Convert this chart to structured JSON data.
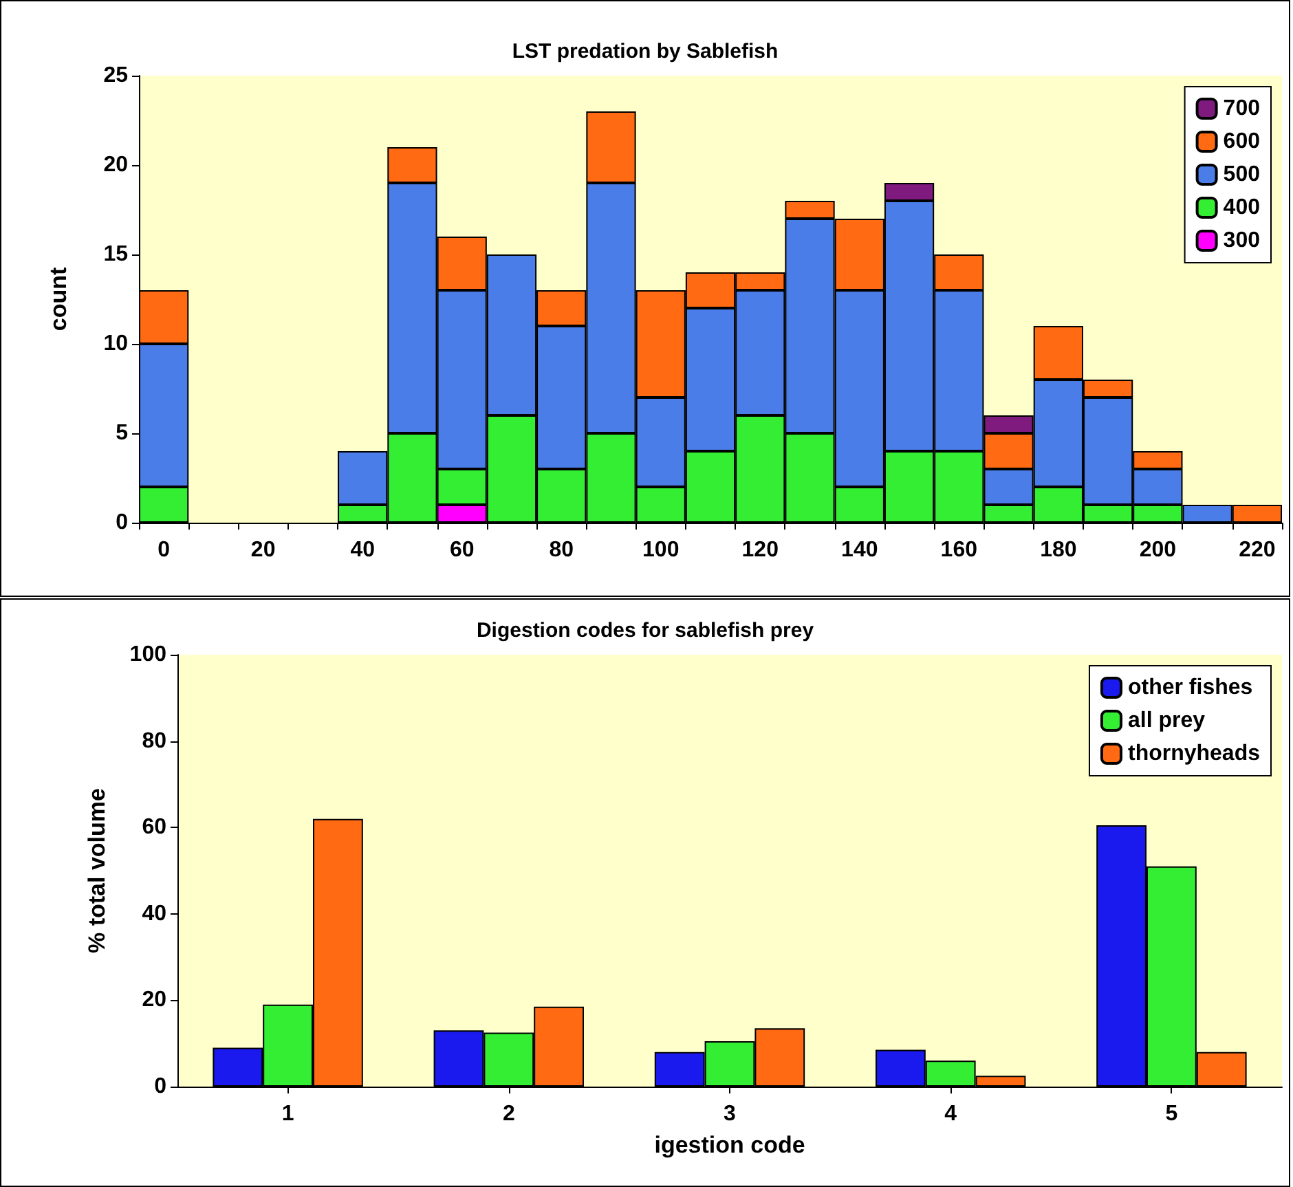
{
  "chart_data": [
    {
      "type": "bar",
      "title": "LST predation by Sablefish",
      "ylabel": "count",
      "stacked": true,
      "legend": "top right",
      "categories": [
        "0",
        null,
        "20",
        null,
        "40",
        null,
        "60",
        null,
        "80",
        null,
        "100",
        null,
        "120",
        null,
        "140",
        null,
        "160",
        null,
        "180",
        null,
        "200",
        null,
        "220"
      ],
      "ylim": [
        0,
        25
      ],
      "yticks": [
        0,
        5,
        10,
        15,
        20,
        25
      ],
      "series": [
        {
          "name": "300",
          "color": "#ff00ff",
          "values": [
            0,
            0,
            0,
            0,
            0,
            0,
            1,
            0,
            0,
            0,
            0,
            0,
            0,
            0,
            0,
            0,
            0,
            0,
            0,
            0,
            0,
            0,
            0
          ]
        },
        {
          "name": "400",
          "color": "#33ee33",
          "values": [
            2,
            0,
            0,
            0,
            1,
            5,
            2,
            6,
            3,
            5,
            2,
            4,
            6,
            5,
            2,
            4,
            4,
            1,
            2,
            1,
            1,
            0,
            0
          ]
        },
        {
          "name": "500",
          "color": "#4a7de8",
          "values": [
            8,
            0,
            0,
            0,
            3,
            14,
            10,
            9,
            8,
            14,
            5,
            8,
            7,
            12,
            11,
            14,
            9,
            2,
            6,
            6,
            2,
            1,
            0
          ]
        },
        {
          "name": "600",
          "color": "#ff6a13",
          "values": [
            3,
            0,
            0,
            0,
            0,
            2,
            3,
            0,
            2,
            4,
            6,
            2,
            1,
            1,
            4,
            0,
            2,
            2,
            3,
            1,
            1,
            0,
            1
          ]
        },
        {
          "name": "700",
          "color": "#7f1a7f",
          "values": [
            0,
            0,
            0,
            0,
            0,
            0,
            0,
            0,
            0,
            0,
            0,
            0,
            0,
            0,
            0,
            1,
            0,
            1,
            0,
            0,
            0,
            0,
            0
          ]
        }
      ]
    },
    {
      "type": "bar",
      "title": "Digestion codes for sablefish prey",
      "xlabel": "igestion code",
      "ylabel": "% total volume",
      "legend": "top right",
      "categories": [
        "1",
        "2",
        "3",
        "4",
        "5"
      ],
      "ylim": [
        0,
        100
      ],
      "yticks": [
        0,
        20,
        40,
        60,
        80,
        100
      ],
      "series": [
        {
          "name": "other fishes",
          "color": "#1a1aee",
          "values": [
            9,
            13,
            8,
            8.5,
            60.5
          ]
        },
        {
          "name": "all prey",
          "color": "#33ee33",
          "values": [
            19,
            12.5,
            10.5,
            6,
            51
          ]
        },
        {
          "name": "thornyheads",
          "color": "#ff6a13",
          "values": [
            62,
            18.5,
            13.5,
            2.5,
            8
          ]
        }
      ]
    }
  ]
}
